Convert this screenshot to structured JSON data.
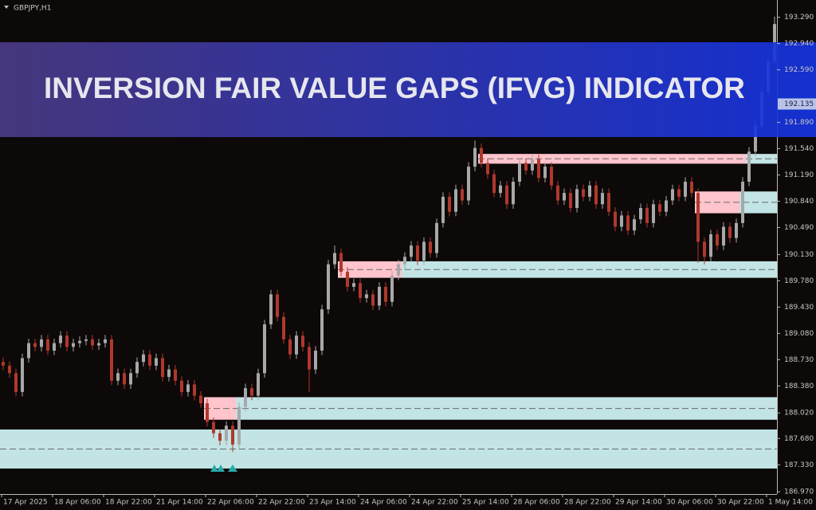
{
  "chart_data": {
    "type": "candlestick",
    "symbol": "GBPJPY,H1",
    "title": "INVERSION FAIR VALUE GAPS (IFVG) INDICATOR",
    "current_price": {
      "value": 192.135,
      "label": "192.135"
    },
    "up_color": "#a8a8a8",
    "down_color": "#b0382c",
    "bear_zone_color": "#ffc4cc",
    "bull_zone_color": "#c2e4e4",
    "ylim": [
      186.94,
      193.52
    ],
    "yticks": [
      {
        "value": 193.29,
        "label": "193.290"
      },
      {
        "value": 192.94,
        "label": "192.940"
      },
      {
        "value": 192.59,
        "label": "192.590"
      },
      {
        "value": 191.89,
        "label": "191.890"
      },
      {
        "value": 191.54,
        "label": "191.540"
      },
      {
        "value": 191.19,
        "label": "191.190"
      },
      {
        "value": 190.84,
        "label": "190.840"
      },
      {
        "value": 190.49,
        "label": "190.490"
      },
      {
        "value": 190.13,
        "label": "190.130"
      },
      {
        "value": 189.78,
        "label": "189.780"
      },
      {
        "value": 189.43,
        "label": "189.430"
      },
      {
        "value": 189.08,
        "label": "189.080"
      },
      {
        "value": 188.73,
        "label": "188.730"
      },
      {
        "value": 188.38,
        "label": "188.380"
      },
      {
        "value": 188.02,
        "label": "188.020"
      },
      {
        "value": 187.68,
        "label": "187.680"
      },
      {
        "value": 187.33,
        "label": "187.330"
      },
      {
        "value": 186.97,
        "label": "186.970"
      }
    ],
    "xlabels": [
      "17 Apr 2025",
      "18 Apr 06:00",
      "18 Apr 22:00",
      "21 Apr 14:00",
      "22 Apr 06:00",
      "22 Apr 22:00",
      "23 Apr 14:00",
      "24 Apr 06:00",
      "24 Apr 22:00",
      "25 Apr 14:00",
      "28 Apr 06:00",
      "28 Apr 22:00",
      "29 Apr 14:00",
      "30 Apr 06:00",
      "30 Apr 22:00",
      "1 May 14:00"
    ],
    "zones": [
      {
        "low": 187.28,
        "high": 187.8,
        "from": 0,
        "flip": 0
      },
      {
        "low": 187.93,
        "high": 188.23,
        "from": 32,
        "flip": 37
      },
      {
        "low": 189.82,
        "high": 190.04,
        "from": 53,
        "flip": 63
      },
      {
        "low": 191.34,
        "high": 191.47,
        "from": 75,
        "flip": 117
      },
      {
        "low": 190.68,
        "high": 190.97,
        "from": 109,
        "flip": 116
      }
    ],
    "candles": [
      [
        188.7,
        188.76,
        188.59,
        188.65
      ],
      [
        188.65,
        188.71,
        188.49,
        188.55
      ],
      [
        188.55,
        188.61,
        188.24,
        188.3
      ],
      [
        188.3,
        188.81,
        188.24,
        188.75
      ],
      [
        188.75,
        189.01,
        188.69,
        188.95
      ],
      [
        188.95,
        189.01,
        188.84,
        188.9
      ],
      [
        188.9,
        189.06,
        188.84,
        189.0
      ],
      [
        189.0,
        189.06,
        188.79,
        188.85
      ],
      [
        188.85,
        189.01,
        188.79,
        188.95
      ],
      [
        188.95,
        189.11,
        188.89,
        189.05
      ],
      [
        189.05,
        189.11,
        188.84,
        188.9
      ],
      [
        188.9,
        189.01,
        188.84,
        188.95
      ],
      [
        188.95,
        189.04,
        188.89,
        188.98
      ],
      [
        188.98,
        189.06,
        188.92,
        189.0
      ],
      [
        189.0,
        189.06,
        188.86,
        188.92
      ],
      [
        188.92,
        189.01,
        188.86,
        188.95
      ],
      [
        188.95,
        189.06,
        188.89,
        189.0
      ],
      [
        189.0,
        189.06,
        188.39,
        188.45
      ],
      [
        188.45,
        188.61,
        188.39,
        188.55
      ],
      [
        188.55,
        188.61,
        188.34,
        188.4
      ],
      [
        188.4,
        188.61,
        188.34,
        188.55
      ],
      [
        188.55,
        188.76,
        188.49,
        188.7
      ],
      [
        188.7,
        188.86,
        188.64,
        188.8
      ],
      [
        188.8,
        188.86,
        188.59,
        188.65
      ],
      [
        188.65,
        188.81,
        188.59,
        188.75
      ],
      [
        188.75,
        188.81,
        188.44,
        188.5
      ],
      [
        188.5,
        188.66,
        188.44,
        188.6
      ],
      [
        188.6,
        188.66,
        188.39,
        188.45
      ],
      [
        188.45,
        188.51,
        188.24,
        188.3
      ],
      [
        188.3,
        188.46,
        188.24,
        188.4
      ],
      [
        188.4,
        188.46,
        188.19,
        188.25
      ],
      [
        188.25,
        188.31,
        188.09,
        188.15
      ],
      [
        188.15,
        188.21,
        187.84,
        187.9
      ],
      [
        187.9,
        187.96,
        187.69,
        187.75
      ],
      [
        187.75,
        187.81,
        187.59,
        187.65
      ],
      [
        187.65,
        187.91,
        187.59,
        187.85
      ],
      [
        187.85,
        187.91,
        187.5,
        187.6
      ],
      [
        187.6,
        188.16,
        187.54,
        188.1
      ],
      [
        188.1,
        188.41,
        188.04,
        188.35
      ],
      [
        188.35,
        188.41,
        188.19,
        188.25
      ],
      [
        188.25,
        188.61,
        188.19,
        188.55
      ],
      [
        188.55,
        189.26,
        188.49,
        189.2
      ],
      [
        189.2,
        189.66,
        189.14,
        189.6
      ],
      [
        189.6,
        189.66,
        189.24,
        189.3
      ],
      [
        189.3,
        189.36,
        188.94,
        189.0
      ],
      [
        189.0,
        189.06,
        188.74,
        188.8
      ],
      [
        188.8,
        189.11,
        188.74,
        189.05
      ],
      [
        189.05,
        189.11,
        188.84,
        188.9
      ],
      [
        188.9,
        188.96,
        188.3,
        188.6
      ],
      [
        188.6,
        188.91,
        188.54,
        188.85
      ],
      [
        188.85,
        189.46,
        188.79,
        189.4
      ],
      [
        189.4,
        190.06,
        189.34,
        190.0
      ],
      [
        190.0,
        190.25,
        189.94,
        190.15
      ],
      [
        190.15,
        190.21,
        189.84,
        189.9
      ],
      [
        189.9,
        189.96,
        189.64,
        189.7
      ],
      [
        189.7,
        189.81,
        189.64,
        189.75
      ],
      [
        189.75,
        189.81,
        189.49,
        189.55
      ],
      [
        189.55,
        189.66,
        189.49,
        189.6
      ],
      [
        189.6,
        189.66,
        189.39,
        189.45
      ],
      [
        189.45,
        189.76,
        189.39,
        189.7
      ],
      [
        189.7,
        189.76,
        189.44,
        189.5
      ],
      [
        189.5,
        189.91,
        189.44,
        189.85
      ],
      [
        189.85,
        190.06,
        189.79,
        190.0
      ],
      [
        190.0,
        190.16,
        189.94,
        190.1
      ],
      [
        190.1,
        190.31,
        190.04,
        190.25
      ],
      [
        190.25,
        190.31,
        189.99,
        190.05
      ],
      [
        190.05,
        190.36,
        189.99,
        190.3
      ],
      [
        190.3,
        190.36,
        190.09,
        190.15
      ],
      [
        190.15,
        190.61,
        190.09,
        190.55
      ],
      [
        190.55,
        190.96,
        190.49,
        190.9
      ],
      [
        190.9,
        190.96,
        190.64,
        190.7
      ],
      [
        190.7,
        191.06,
        190.64,
        191.0
      ],
      [
        191.0,
        191.06,
        190.79,
        190.85
      ],
      [
        190.85,
        191.36,
        190.79,
        191.3
      ],
      [
        191.3,
        191.65,
        191.24,
        191.55
      ],
      [
        191.55,
        191.61,
        191.29,
        191.35
      ],
      [
        191.35,
        191.41,
        191.14,
        191.2
      ],
      [
        191.2,
        191.26,
        190.89,
        190.95
      ],
      [
        190.95,
        191.11,
        190.89,
        191.05
      ],
      [
        191.05,
        191.11,
        190.74,
        190.8
      ],
      [
        190.8,
        191.16,
        190.74,
        191.1
      ],
      [
        191.1,
        191.41,
        191.04,
        191.35
      ],
      [
        191.35,
        191.41,
        191.19,
        191.25
      ],
      [
        191.25,
        191.46,
        191.19,
        191.4
      ],
      [
        191.4,
        191.46,
        191.09,
        191.15
      ],
      [
        191.15,
        191.36,
        191.09,
        191.3
      ],
      [
        191.3,
        191.36,
        190.99,
        191.05
      ],
      [
        191.05,
        191.11,
        190.79,
        190.85
      ],
      [
        190.85,
        191.01,
        190.79,
        190.95
      ],
      [
        190.95,
        191.01,
        190.69,
        190.75
      ],
      [
        190.75,
        191.06,
        190.69,
        191.0
      ],
      [
        191.0,
        191.06,
        190.84,
        190.9
      ],
      [
        190.9,
        191.11,
        190.84,
        191.05
      ],
      [
        191.05,
        191.11,
        190.74,
        190.8
      ],
      [
        190.8,
        191.01,
        190.74,
        190.95
      ],
      [
        190.95,
        191.01,
        190.64,
        190.7
      ],
      [
        190.7,
        190.76,
        190.44,
        190.5
      ],
      [
        190.5,
        190.71,
        190.44,
        190.65
      ],
      [
        190.65,
        190.71,
        190.39,
        190.45
      ],
      [
        190.45,
        190.66,
        190.39,
        190.6
      ],
      [
        190.6,
        190.81,
        190.54,
        190.75
      ],
      [
        190.75,
        190.81,
        190.49,
        190.55
      ],
      [
        190.55,
        190.86,
        190.49,
        190.8
      ],
      [
        190.8,
        190.86,
        190.64,
        190.7
      ],
      [
        190.7,
        190.91,
        190.64,
        190.85
      ],
      [
        190.85,
        191.06,
        190.79,
        191.0
      ],
      [
        191.0,
        191.06,
        190.84,
        190.9
      ],
      [
        190.9,
        191.16,
        190.84,
        191.1
      ],
      [
        191.1,
        191.16,
        190.89,
        190.95
      ],
      [
        190.95,
        191.01,
        190.02,
        190.3
      ],
      [
        190.3,
        190.36,
        190.0,
        190.1
      ],
      [
        190.1,
        190.46,
        190.04,
        190.4
      ],
      [
        190.4,
        190.46,
        190.19,
        190.25
      ],
      [
        190.25,
        190.56,
        190.19,
        190.5
      ],
      [
        190.5,
        190.56,
        190.29,
        190.35
      ],
      [
        190.35,
        190.61,
        190.29,
        190.55
      ],
      [
        190.55,
        191.16,
        190.49,
        191.1
      ],
      [
        191.1,
        191.56,
        191.04,
        191.5
      ],
      [
        191.5,
        191.91,
        191.44,
        191.85
      ],
      [
        191.85,
        192.36,
        191.79,
        192.3
      ],
      [
        192.3,
        192.76,
        192.24,
        192.7
      ],
      [
        192.7,
        193.3,
        192.64,
        193.2
      ]
    ]
  }
}
